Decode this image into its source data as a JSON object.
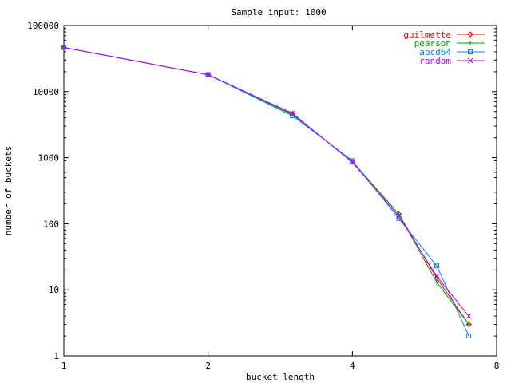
{
  "chart_data": {
    "type": "line",
    "title": "Sample input: 1000",
    "xlabel": "bucket length",
    "ylabel": "number of buckets",
    "x_scale": "log2",
    "y_scale": "log10",
    "xlim": [
      1,
      8
    ],
    "ylim": [
      1,
      100000
    ],
    "x_ticks": [
      1,
      2,
      4,
      8
    ],
    "x_tick_labels": [
      "1",
      "2",
      "4",
      "8"
    ],
    "y_ticks": [
      1,
      10,
      100,
      1000,
      10000,
      100000
    ],
    "y_tick_labels": [
      "1",
      "10",
      "100",
      "1000",
      "10000",
      "100000"
    ],
    "grid": false,
    "legend_position": "top-right",
    "series": [
      {
        "name": "guilmette",
        "color": "#ff0000",
        "marker": "diamond",
        "x": [
          1,
          2,
          3,
          4,
          5,
          6,
          7
        ],
        "y": [
          46500,
          18000,
          4600,
          870,
          140,
          15,
          3
        ]
      },
      {
        "name": "pearson",
        "color": "#00a000",
        "marker": "plus",
        "x": [
          1,
          2,
          3,
          4,
          5,
          6,
          7
        ],
        "y": [
          46500,
          18000,
          4500,
          880,
          140,
          13,
          3
        ]
      },
      {
        "name": "abcd64",
        "color": "#0080ff",
        "marker": "square",
        "x": [
          1,
          2,
          3,
          4,
          5,
          6,
          7
        ],
        "y": [
          46500,
          18000,
          4300,
          900,
          120,
          23,
          2
        ]
      },
      {
        "name": "random",
        "color": "#c000ff",
        "marker": "x",
        "x": [
          1,
          2,
          3,
          4,
          5,
          6,
          7
        ],
        "y": [
          46500,
          18000,
          4700,
          850,
          130,
          16,
          4
        ]
      }
    ]
  }
}
